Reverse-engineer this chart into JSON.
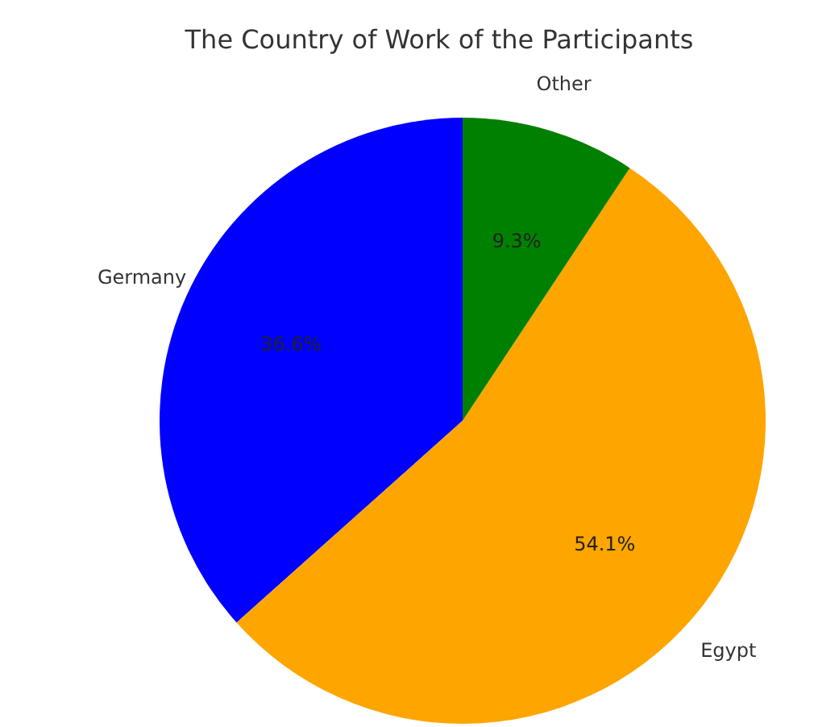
{
  "chart_data": {
    "type": "pie",
    "title": "The Country of Work of the Participants",
    "categories": [
      "Germany",
      "Egypt",
      "Other"
    ],
    "values": [
      36.6,
      54.1,
      9.3
    ],
    "colors": [
      "#0000ff",
      "#ffa500",
      "#008000"
    ],
    "value_labels": [
      "36.6%",
      "54.1%",
      "9.3%"
    ]
  }
}
